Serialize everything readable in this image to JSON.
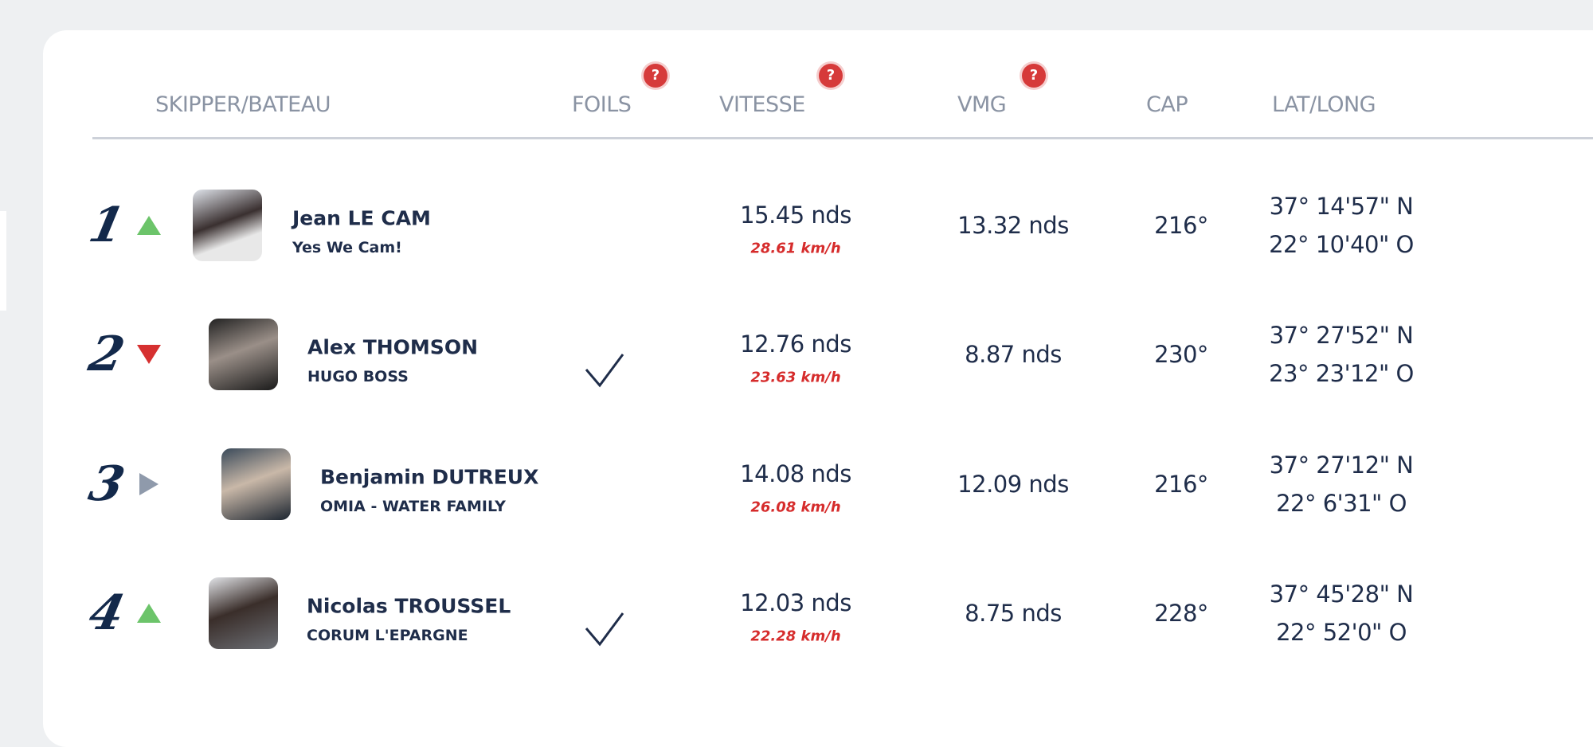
{
  "columns": {
    "skipper": "SKIPPER/BATEAU",
    "foils": "FOILS",
    "speed": "VITESSE",
    "vmg": "VMG",
    "heading": "CAP",
    "latlong": "LAT/LONG"
  },
  "help_icon_label": "?",
  "colors": {
    "up": "#6cc46a",
    "down": "#d63030",
    "same": "#8f9aab",
    "kmh": "#d62c2c",
    "help": "#d63a3a"
  },
  "rows": [
    {
      "rank": "1",
      "trend": "up",
      "skipper": "Jean LE CAM",
      "boat": "Yes We Cam!",
      "foils": false,
      "speed": "15.45 nds",
      "speed_kmh": "28.61 km/h",
      "vmg": "13.32 nds",
      "heading": "216°",
      "lat": "37° 14'57\" N",
      "long": "22° 10'40\" O"
    },
    {
      "rank": "2",
      "trend": "down",
      "skipper": "Alex THOMSON",
      "boat": "HUGO BOSS",
      "foils": true,
      "speed": "12.76 nds",
      "speed_kmh": "23.63 km/h",
      "vmg": "8.87 nds",
      "heading": "230°",
      "lat": "37° 27'52\" N",
      "long": "23° 23'12\" O"
    },
    {
      "rank": "3",
      "trend": "same",
      "skipper": "Benjamin DUTREUX",
      "boat": "OMIA - WATER FAMILY",
      "foils": false,
      "speed": "14.08 nds",
      "speed_kmh": "26.08 km/h",
      "vmg": "12.09 nds",
      "heading": "216°",
      "lat": "37° 27'12\" N",
      "long": "22° 6'31\" O"
    },
    {
      "rank": "4",
      "trend": "up",
      "skipper": "Nicolas TROUSSEL",
      "boat": "CORUM L'EPARGNE",
      "foils": true,
      "speed": "12.03 nds",
      "speed_kmh": "22.28 km/h",
      "vmg": "8.75 nds",
      "heading": "228°",
      "lat": "37° 45'28\" N",
      "long": "22° 52'0\" O"
    }
  ]
}
